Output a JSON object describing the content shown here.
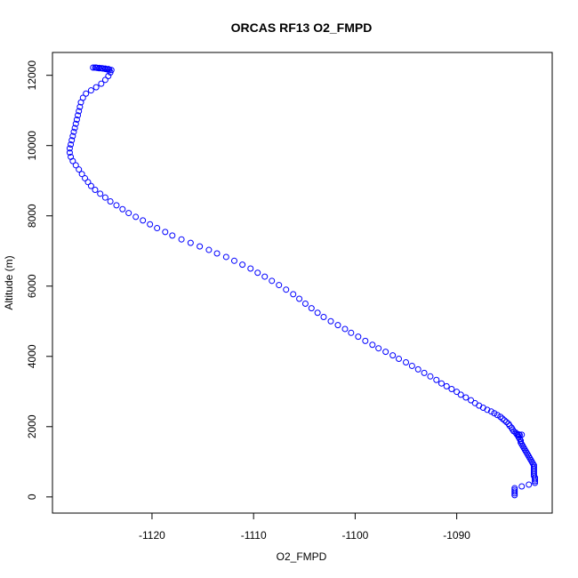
{
  "chart_data": {
    "type": "scatter",
    "title": "ORCAS RF13 O2_FMPD",
    "xlabel": "O2_FMPD",
    "ylabel": "Altitude (m)",
    "xlim": [
      -1129.8,
      -1080.6
    ],
    "ylim": [
      -460,
      12650
    ],
    "xticks": [
      -1120,
      -1110,
      -1100,
      -1090
    ],
    "xtick_labels": [
      "-1120",
      "-1110",
      "-1100",
      "-1090"
    ],
    "yticks": [
      0,
      2000,
      4000,
      6000,
      8000,
      10000,
      12000
    ],
    "ytick_labels": [
      "0",
      "2000",
      "4000",
      "6000",
      "8000",
      "10000",
      "12000"
    ],
    "marker": "open-circle",
    "marker_color": "#0000ff",
    "grid": false,
    "legend": "none",
    "series": [
      {
        "points": [
          [
            -1084.3,
            50
          ],
          [
            -1084.3,
            100
          ],
          [
            -1084.3,
            150
          ],
          [
            -1084.3,
            200
          ],
          [
            -1084.3,
            250
          ],
          [
            -1083.6,
            300
          ],
          [
            -1082.9,
            350
          ],
          [
            -1082.3,
            400
          ],
          [
            -1082.3,
            450
          ],
          [
            -1082.3,
            500
          ],
          [
            -1082.3,
            550
          ],
          [
            -1082.4,
            600
          ],
          [
            -1082.4,
            650
          ],
          [
            -1082.4,
            700
          ],
          [
            -1082.4,
            750
          ],
          [
            -1082.4,
            800
          ],
          [
            -1082.4,
            850
          ],
          [
            -1082.4,
            900
          ],
          [
            -1082.5,
            950
          ],
          [
            -1082.6,
            1000
          ],
          [
            -1082.7,
            1050
          ],
          [
            -1082.8,
            1100
          ],
          [
            -1082.9,
            1150
          ],
          [
            -1083.0,
            1200
          ],
          [
            -1083.1,
            1250
          ],
          [
            -1083.2,
            1300
          ],
          [
            -1083.3,
            1350
          ],
          [
            -1083.4,
            1400
          ],
          [
            -1083.5,
            1450
          ],
          [
            -1083.6,
            1500
          ],
          [
            -1083.7,
            1550
          ],
          [
            -1083.7,
            1600
          ],
          [
            -1083.8,
            1650
          ],
          [
            -1083.9,
            1700
          ],
          [
            -1084.0,
            1750
          ],
          [
            -1083.8,
            1760
          ],
          [
            -1083.6,
            1770
          ],
          [
            -1083.9,
            1780
          ],
          [
            -1084.1,
            1790
          ],
          [
            -1084.2,
            1830
          ],
          [
            -1084.4,
            1870
          ],
          [
            -1084.5,
            1920
          ],
          [
            -1084.6,
            1970
          ],
          [
            -1084.8,
            2030
          ],
          [
            -1084.9,
            2080
          ],
          [
            -1085.1,
            2130
          ],
          [
            -1085.3,
            2180
          ],
          [
            -1085.5,
            2230
          ],
          [
            -1085.7,
            2280
          ],
          [
            -1086.0,
            2330
          ],
          [
            -1086.3,
            2380
          ],
          [
            -1086.6,
            2430
          ],
          [
            -1087.0,
            2480
          ],
          [
            -1087.4,
            2540
          ],
          [
            -1087.8,
            2600
          ],
          [
            -1088.2,
            2670
          ],
          [
            -1088.6,
            2750
          ],
          [
            -1089.1,
            2830
          ],
          [
            -1089.6,
            2910
          ],
          [
            -1090.0,
            2990
          ],
          [
            -1090.5,
            3070
          ],
          [
            -1091.0,
            3150
          ],
          [
            -1091.5,
            3230
          ],
          [
            -1092.0,
            3330
          ],
          [
            -1092.6,
            3430
          ],
          [
            -1093.2,
            3530
          ],
          [
            -1093.8,
            3630
          ],
          [
            -1094.4,
            3730
          ],
          [
            -1095.0,
            3830
          ],
          [
            -1095.7,
            3930
          ],
          [
            -1096.3,
            4030
          ],
          [
            -1097.0,
            4130
          ],
          [
            -1097.7,
            4230
          ],
          [
            -1098.3,
            4330
          ],
          [
            -1099.0,
            4440
          ],
          [
            -1099.7,
            4560
          ],
          [
            -1100.4,
            4670
          ],
          [
            -1101.0,
            4780
          ],
          [
            -1101.7,
            4890
          ],
          [
            -1102.4,
            5000
          ],
          [
            -1103.1,
            5120
          ],
          [
            -1103.7,
            5240
          ],
          [
            -1104.3,
            5370
          ],
          [
            -1104.9,
            5500
          ],
          [
            -1105.5,
            5640
          ],
          [
            -1106.1,
            5770
          ],
          [
            -1106.8,
            5900
          ],
          [
            -1107.5,
            6030
          ],
          [
            -1108.2,
            6150
          ],
          [
            -1108.9,
            6270
          ],
          [
            -1109.6,
            6380
          ],
          [
            -1110.3,
            6500
          ],
          [
            -1111.1,
            6610
          ],
          [
            -1111.9,
            6720
          ],
          [
            -1112.7,
            6830
          ],
          [
            -1113.6,
            6930
          ],
          [
            -1114.4,
            7030
          ],
          [
            -1115.3,
            7130
          ],
          [
            -1116.2,
            7230
          ],
          [
            -1117.1,
            7330
          ],
          [
            -1118.0,
            7440
          ],
          [
            -1118.7,
            7540
          ],
          [
            -1119.5,
            7650
          ],
          [
            -1120.2,
            7760
          ],
          [
            -1120.9,
            7870
          ],
          [
            -1121.6,
            7970
          ],
          [
            -1122.3,
            8080
          ],
          [
            -1122.9,
            8190
          ],
          [
            -1123.5,
            8300
          ],
          [
            -1124.1,
            8410
          ],
          [
            -1124.6,
            8520
          ],
          [
            -1125.1,
            8630
          ],
          [
            -1125.6,
            8740
          ],
          [
            -1126.0,
            8850
          ],
          [
            -1126.3,
            8960
          ],
          [
            -1126.6,
            9070
          ],
          [
            -1126.9,
            9190
          ],
          [
            -1127.2,
            9320
          ],
          [
            -1127.5,
            9440
          ],
          [
            -1127.8,
            9560
          ],
          [
            -1128.0,
            9680
          ],
          [
            -1128.1,
            9800
          ],
          [
            -1128.1,
            9920
          ],
          [
            -1128.0,
            10030
          ],
          [
            -1127.9,
            10150
          ],
          [
            -1127.8,
            10270
          ],
          [
            -1127.7,
            10390
          ],
          [
            -1127.6,
            10500
          ],
          [
            -1127.5,
            10620
          ],
          [
            -1127.4,
            10740
          ],
          [
            -1127.3,
            10860
          ],
          [
            -1127.2,
            10980
          ],
          [
            -1127.1,
            11100
          ],
          [
            -1127.0,
            11230
          ],
          [
            -1126.8,
            11360
          ],
          [
            -1126.5,
            11480
          ],
          [
            -1126.0,
            11570
          ],
          [
            -1125.5,
            11660
          ],
          [
            -1125.0,
            11760
          ],
          [
            -1124.6,
            11870
          ],
          [
            -1124.3,
            11980
          ],
          [
            -1124.1,
            12080
          ],
          [
            -1124.0,
            12150
          ],
          [
            -1124.2,
            12160
          ],
          [
            -1124.4,
            12170
          ],
          [
            -1124.6,
            12180
          ],
          [
            -1124.8,
            12190
          ],
          [
            -1125.0,
            12200
          ],
          [
            -1125.2,
            12200
          ],
          [
            -1125.4,
            12210
          ],
          [
            -1125.6,
            12220
          ],
          [
            -1125.8,
            12220
          ],
          [
            -1125.5,
            12220
          ],
          [
            -1125.2,
            12210
          ],
          [
            -1124.9,
            12200
          ],
          [
            -1124.6,
            12190
          ],
          [
            -1124.3,
            12180
          ]
        ]
      }
    ]
  }
}
